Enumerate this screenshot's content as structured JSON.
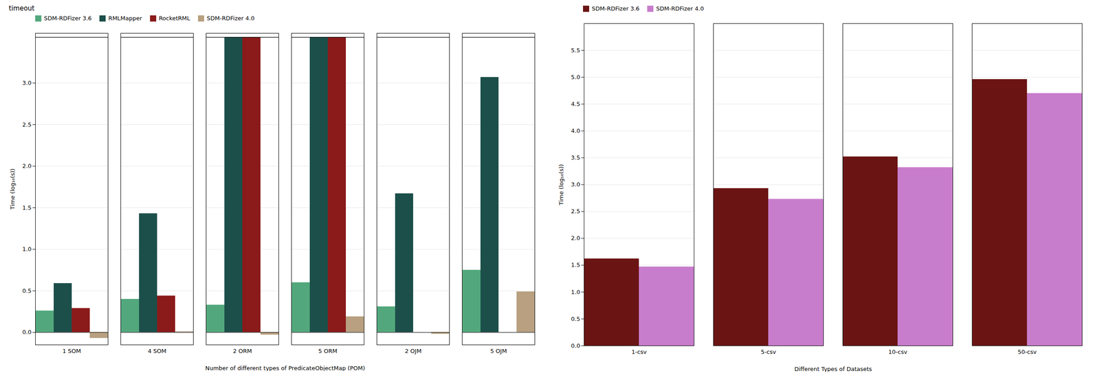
{
  "chart_data": [
    {
      "type": "bar",
      "title": "timeout",
      "xlabel": "Number of different types of PredicateObjectMap (POM)",
      "ylabel": "Time (log₁₀(s))",
      "categories": [
        "1 SOM",
        "4 SOM",
        "2 ORM",
        "5 ORM",
        "2 OJM",
        "5 OJM"
      ],
      "series": [
        {
          "name": "SDM-RDFizer 3.6",
          "color": "#52a87c",
          "values": [
            0.26,
            0.4,
            0.33,
            0.6,
            0.31,
            0.75
          ]
        },
        {
          "name": "RMLMapper",
          "color": "#1c4f4a",
          "values": [
            0.59,
            1.43,
            3.55,
            3.55,
            1.67,
            3.07
          ]
        },
        {
          "name": "RocketRML",
          "color": "#8b1a1a",
          "values": [
            0.29,
            0.44,
            3.55,
            3.55,
            null,
            null
          ]
        },
        {
          "name": "SDM-RDFizer 4.0",
          "color": "#b8a080",
          "values": [
            -0.07,
            0.01,
            -0.03,
            0.19,
            -0.02,
            0.49
          ]
        }
      ],
      "hline": 3.55,
      "ylim": [
        -0.15,
        3.6
      ],
      "yticks": [
        {
          "value": 0,
          "label": "0.0"
        },
        0.5,
        {
          "value": 1,
          "label": "1.0"
        },
        1.5,
        {
          "value": 2,
          "label": "2.0"
        },
        2.5,
        {
          "value": 3,
          "label": "3.0"
        }
      ],
      "grid": true,
      "legend": "upper left"
    },
    {
      "type": "bar",
      "xlabel": "Different Types of Datasets",
      "ylabel": "Time (log₁₀(s))",
      "categories": [
        "1-csv",
        "5-csv",
        "10-csv",
        "50-csv"
      ],
      "series": [
        {
          "name": "SDM-RDFizer 3.6",
          "color": "#6b1414",
          "values": [
            1.62,
            2.93,
            3.52,
            4.96
          ]
        },
        {
          "name": "SDM-RDFizer 4.0",
          "color": "#c87dcc",
          "values": [
            1.47,
            2.73,
            3.32,
            4.7
          ]
        }
      ],
      "ylim": [
        0,
        6.0
      ],
      "yticks": [
        {
          "value": 0,
          "label": "0.0"
        },
        0.5,
        {
          "value": 1,
          "label": "1.0"
        },
        1.5,
        {
          "value": 2,
          "label": "2.0"
        },
        2.5,
        {
          "value": 3,
          "label": "3.0"
        },
        3.5,
        {
          "value": 4,
          "label": "4.0"
        },
        4.5,
        {
          "value": 5,
          "label": "5.0"
        },
        5.5
      ],
      "grid": true,
      "legend": "upper left"
    }
  ]
}
